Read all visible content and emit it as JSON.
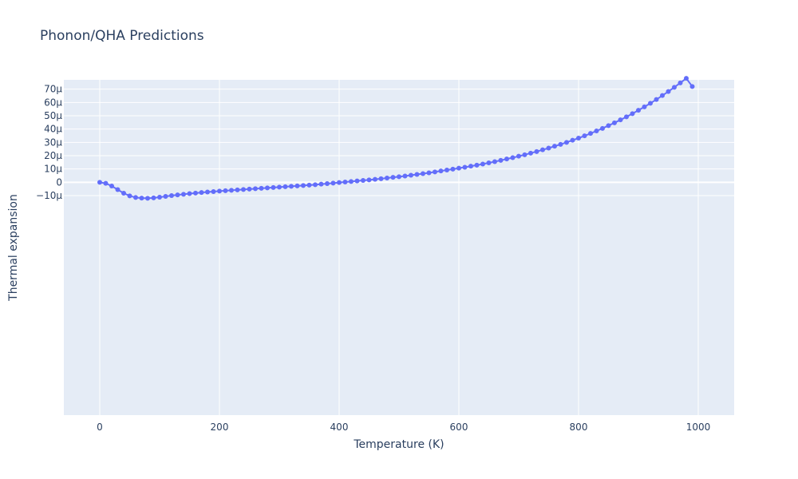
{
  "chart_data": {
    "type": "line",
    "title": "Phonon/QHA Predictions",
    "xlabel": "Temperature (K)",
    "ylabel": "Thermal expansion",
    "xlim": [
      -60,
      1060
    ],
    "ylim": [
      -0.000175,
      7.7e-05
    ],
    "xticks": [
      0,
      200,
      400,
      600,
      800,
      1000
    ],
    "xtick_labels": [
      "0",
      "200",
      "400",
      "600",
      "800",
      "1000"
    ],
    "yticks": [
      -1e-05,
      0,
      1e-05,
      2e-05,
      3e-05,
      4e-05,
      5e-05,
      6e-05,
      7e-05
    ],
    "ytick_labels": [
      "−10μ",
      "0",
      "10μ",
      "20μ",
      "30μ",
      "40μ",
      "50μ",
      "60μ",
      "70μ"
    ],
    "grid": true,
    "colors": {
      "series": "#636efa",
      "plot_bg": "#e5ecf6",
      "grid": "#ffffff",
      "text": "#2a3f5f"
    },
    "series": [
      {
        "x": [
          0,
          10,
          20,
          30,
          40,
          50,
          60,
          70,
          80,
          90,
          100,
          110,
          120,
          130,
          140,
          150,
          160,
          170,
          180,
          190,
          200,
          210,
          220,
          230,
          240,
          250,
          260,
          270,
          280,
          290,
          300,
          310,
          320,
          330,
          340,
          350,
          360,
          370,
          380,
          390,
          400,
          410,
          420,
          430,
          440,
          450,
          460,
          470,
          480,
          490,
          500,
          510,
          520,
          530,
          540,
          550,
          560,
          570,
          580,
          590,
          600,
          610,
          620,
          630,
          640,
          650,
          660,
          670,
          680,
          690,
          700,
          710,
          720,
          730,
          740,
          750,
          760,
          770,
          780,
          790,
          800,
          810,
          820,
          830,
          840,
          850,
          860,
          870,
          880,
          890,
          900,
          910,
          920,
          930,
          940,
          950,
          960,
          970,
          980,
          990
        ],
        "y": [
          0,
          -8e-07,
          -2.8e-06,
          -5.5e-06,
          -8.2e-06,
          -1.02e-05,
          -1.14e-05,
          -1.19e-05,
          -1.2e-05,
          -1.17e-05,
          -1.12e-05,
          -1.06e-05,
          -1e-05,
          -9.5e-06,
          -9e-06,
          -8.5e-06,
          -8.1e-06,
          -7.7e-06,
          -7.3e-06,
          -7e-06,
          -6.6e-06,
          -6.3e-06,
          -6e-06,
          -5.7e-06,
          -5.4e-06,
          -5.1e-06,
          -4.8e-06,
          -4.5e-06,
          -4.2e-06,
          -3.9e-06,
          -3.6e-06,
          -3.3e-06,
          -3e-06,
          -2.7e-06,
          -2.4e-06,
          -2.1e-06,
          -1.8e-06,
          -1.4e-06,
          -1e-06,
          -6e-07,
          -2e-07,
          2e-07,
          6e-07,
          1e-06,
          1.4e-06,
          1.8e-06,
          2.2e-06,
          2.7e-06,
          3.2e-06,
          3.7e-06,
          4.2e-06,
          4.7e-06,
          5.3e-06,
          5.9e-06,
          6.5e-06,
          7.1e-06,
          7.8e-06,
          8.5e-06,
          9.2e-06,
          9.9e-06,
          1.06e-05,
          1.13e-05,
          1.21e-05,
          1.29e-05,
          1.37e-05,
          1.46e-05,
          1.55e-05,
          1.65e-05,
          1.75e-05,
          1.85e-05,
          1.96e-05,
          2.07e-05,
          2.19e-05,
          2.31e-05,
          2.44e-05,
          2.57e-05,
          2.71e-05,
          2.85e-05,
          3e-05,
          3.16e-05,
          3.32e-05,
          3.49e-05,
          3.67e-05,
          3.86e-05,
          4.05e-05,
          4.26e-05,
          4.47e-05,
          4.69e-05,
          4.92e-05,
          5.16e-05,
          5.41e-05,
          5.67e-05,
          5.94e-05,
          6.22e-05,
          6.52e-05,
          6.82e-05,
          7.14e-05,
          7.47e-05,
          7.81e-05,
          7.2e-05
        ]
      }
    ]
  }
}
